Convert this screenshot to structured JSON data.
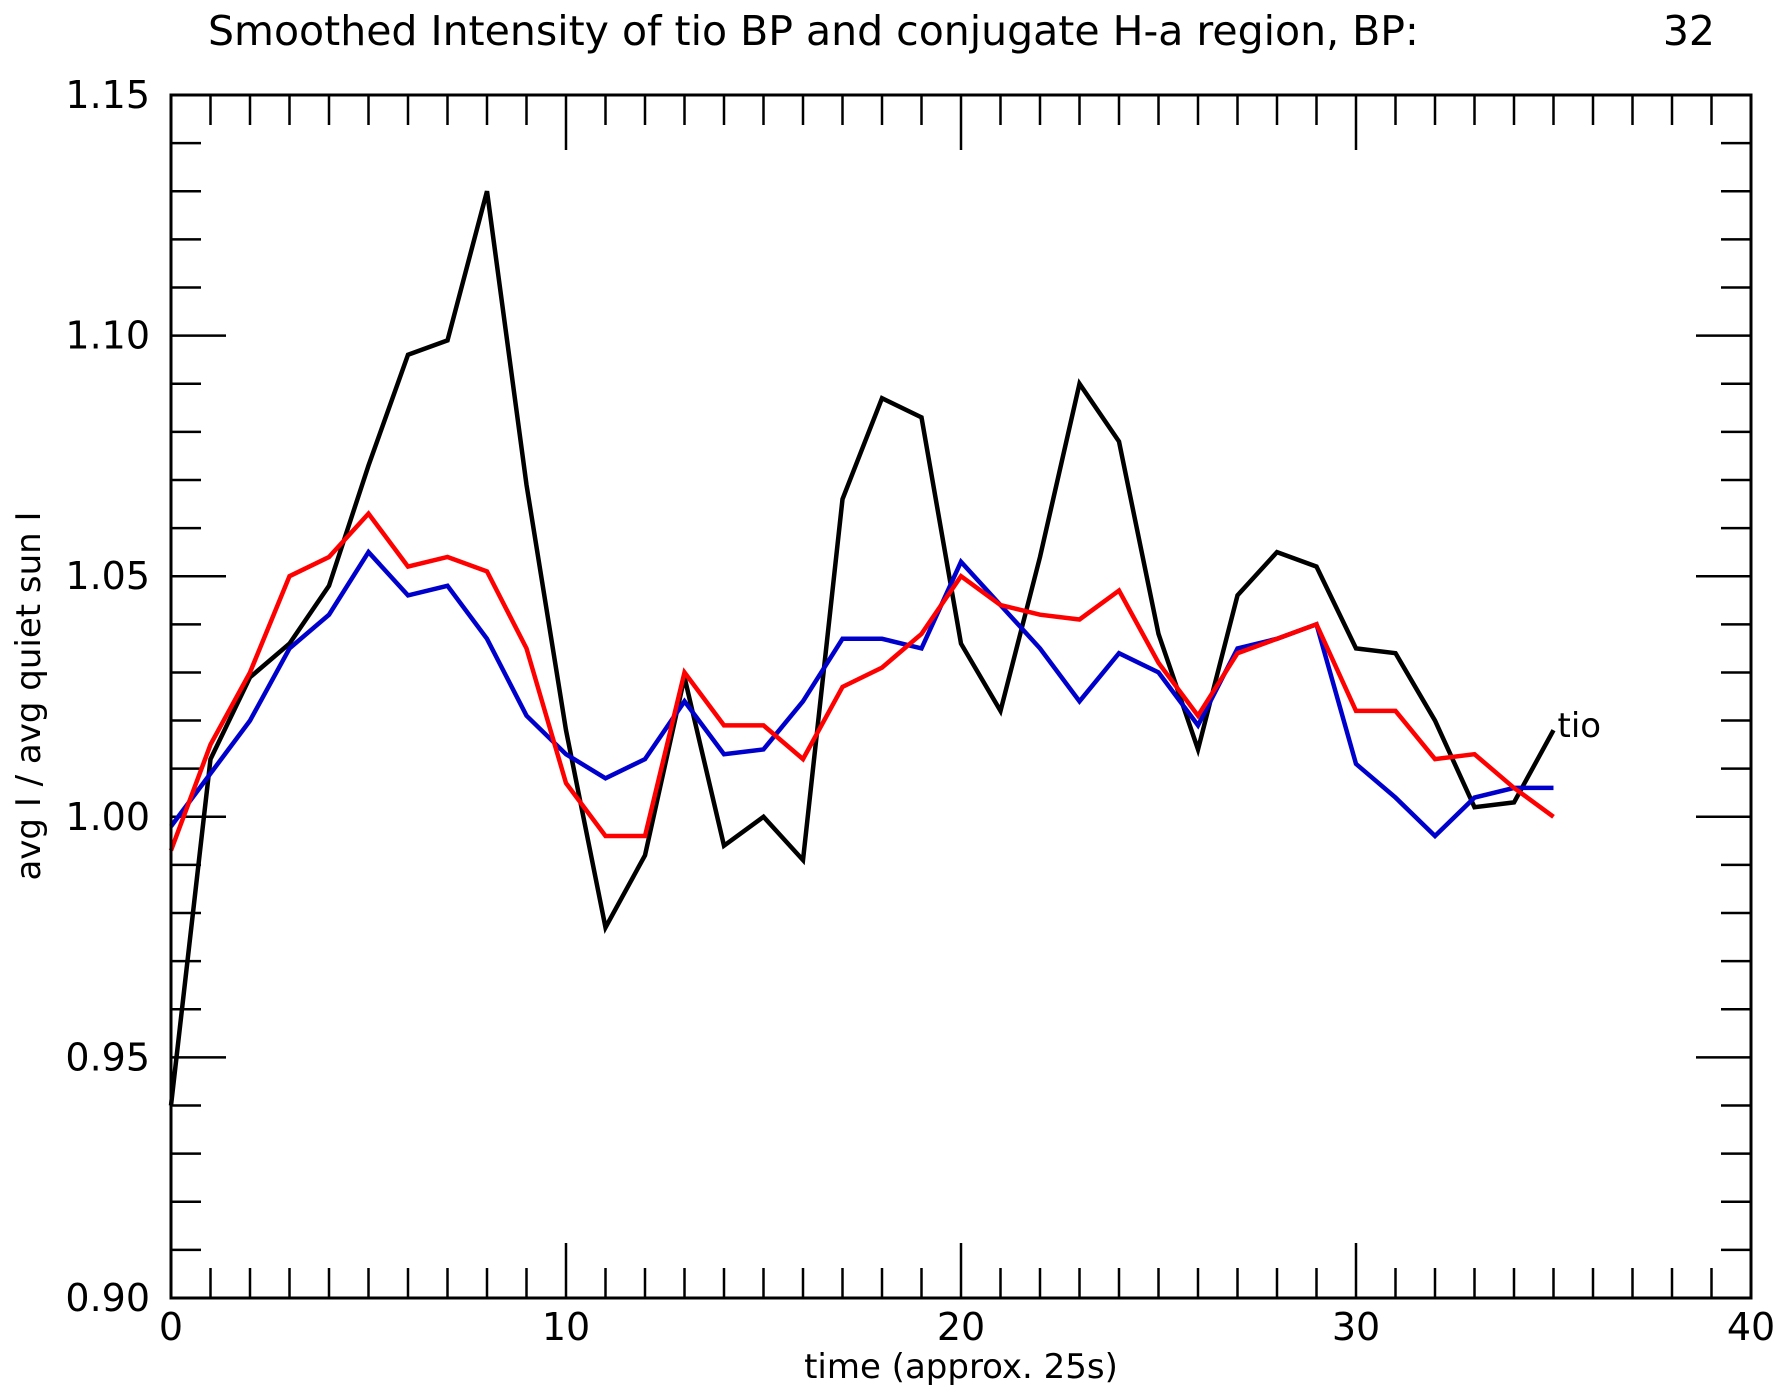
{
  "chart_data": {
    "type": "line",
    "title": "Smoothed Intensity of tio BP and conjugate H-a region, BP:",
    "title_value": "32",
    "xlabel": "time (approx. 25s)",
    "ylabel": "avg I / avg quiet sun I",
    "xlim": [
      0,
      40
    ],
    "ylim": [
      0.9,
      1.15
    ],
    "x_ticks": [
      0,
      10,
      20,
      30,
      40
    ],
    "x_tick_labels": [
      "0",
      "10",
      "20",
      "30",
      "40"
    ],
    "y_ticks": [
      0.9,
      0.95,
      1.0,
      1.05,
      1.1,
      1.15
    ],
    "y_tick_labels": [
      "0.90",
      "0.95",
      "1.00",
      "1.05",
      "1.10",
      "1.15"
    ],
    "x": [
      0,
      1,
      2,
      3,
      4,
      5,
      6,
      7,
      8,
      9,
      10,
      11,
      12,
      13,
      14,
      15,
      16,
      17,
      18,
      19,
      20,
      21,
      22,
      23,
      24,
      25,
      26,
      27,
      28,
      29,
      30,
      31,
      32,
      33,
      34,
      35
    ],
    "series": [
      {
        "name": "tio",
        "color": "#000000",
        "values": [
          0.94,
          1.012,
          1.029,
          1.036,
          1.048,
          1.073,
          1.096,
          1.099,
          1.13,
          1.069,
          1.018,
          0.977,
          0.992,
          1.029,
          0.994,
          1.0,
          0.991,
          1.066,
          1.087,
          1.083,
          1.036,
          1.022,
          1.054,
          1.09,
          1.078,
          1.038,
          1.014,
          1.046,
          1.055,
          1.052,
          1.035,
          1.034,
          1.02,
          1.002,
          1.003,
          1.018
        ]
      },
      {
        "color": "#0000cc",
        "values": [
          0.998,
          1.009,
          1.02,
          1.035,
          1.042,
          1.055,
          1.046,
          1.048,
          1.037,
          1.021,
          1.013,
          1.008,
          1.012,
          1.024,
          1.013,
          1.014,
          1.024,
          1.037,
          1.037,
          1.035,
          1.053,
          1.044,
          1.035,
          1.024,
          1.034,
          1.03,
          1.019,
          1.035,
          1.037,
          1.04,
          1.011,
          1.004,
          0.996,
          1.004,
          1.006,
          1.006
        ]
      },
      {
        "color": "#ff0000",
        "values": [
          0.993,
          1.015,
          1.03,
          1.05,
          1.054,
          1.063,
          1.052,
          1.054,
          1.051,
          1.035,
          1.007,
          0.996,
          0.996,
          1.03,
          1.019,
          1.019,
          1.012,
          1.027,
          1.031,
          1.038,
          1.05,
          1.044,
          1.042,
          1.041,
          1.047,
          1.032,
          1.021,
          1.034,
          1.037,
          1.04,
          1.022,
          1.022,
          1.012,
          1.013,
          1.006,
          1.0
        ]
      }
    ],
    "grid": false,
    "legend": "none"
  }
}
